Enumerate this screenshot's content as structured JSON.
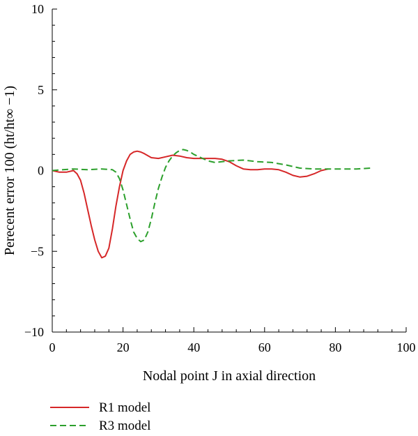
{
  "chart_data": {
    "type": "line",
    "title": "",
    "xlabel": "Nodal point J in axial direction",
    "ylabel": "Perecent error 100 (ht/ht∞ −1)",
    "xlim": [
      0,
      100
    ],
    "ylim": [
      -10,
      10
    ],
    "x_ticks": [
      0,
      20,
      40,
      60,
      80,
      100
    ],
    "x_tick_labels": [
      "0",
      "20",
      "40",
      "60",
      "80",
      "100"
    ],
    "y_ticks": [
      10,
      5,
      0,
      -5,
      -10
    ],
    "y_tick_labels": [
      "10",
      "5",
      "0",
      "−5",
      "−10"
    ],
    "grid": false,
    "legend_position": "bottom-left",
    "series": [
      {
        "name": "R1 model",
        "color": "#d62728",
        "style": "solid",
        "x": [
          0,
          2,
          4,
          6,
          7,
          8,
          9,
          10,
          11,
          12,
          13,
          14,
          15,
          16,
          17,
          18,
          19,
          20,
          21,
          22,
          23,
          24,
          25,
          26,
          28,
          30,
          32,
          34,
          36,
          38,
          40,
          42,
          44,
          46,
          48,
          50,
          52,
          54,
          56,
          58,
          60,
          62,
          64,
          66,
          68,
          70,
          72,
          74,
          76,
          78
        ],
        "values": [
          0,
          -0.1,
          -0.1,
          0,
          -0.2,
          -0.6,
          -1.4,
          -2.4,
          -3.4,
          -4.3,
          -5.0,
          -5.4,
          -5.3,
          -4.8,
          -3.6,
          -2.2,
          -1.0,
          0.0,
          0.6,
          1.0,
          1.15,
          1.2,
          1.15,
          1.05,
          0.8,
          0.75,
          0.85,
          0.95,
          0.9,
          0.8,
          0.75,
          0.75,
          0.75,
          0.75,
          0.7,
          0.55,
          0.3,
          0.1,
          0.05,
          0.05,
          0.1,
          0.1,
          0.05,
          -0.1,
          -0.3,
          -0.4,
          -0.35,
          -0.2,
          0.0,
          0.1
        ]
      },
      {
        "name": "R3 model",
        "color": "#2ca02c",
        "style": "dashed",
        "x": [
          0,
          3,
          6,
          10,
          14,
          17,
          18,
          19,
          20,
          21,
          22,
          23,
          24,
          25,
          26,
          27,
          28,
          29,
          30,
          31,
          32,
          33,
          34,
          35,
          36,
          37,
          38,
          39,
          40,
          42,
          44,
          46,
          48,
          50,
          54,
          58,
          62,
          66,
          70,
          74,
          78,
          82,
          86,
          90
        ],
        "values": [
          0,
          0.05,
          0.1,
          0.05,
          0.1,
          0.05,
          -0.1,
          -0.5,
          -1.2,
          -2.1,
          -3.0,
          -3.8,
          -4.2,
          -4.4,
          -4.3,
          -3.8,
          -3.0,
          -2.0,
          -1.1,
          -0.4,
          0.2,
          0.6,
          0.9,
          1.1,
          1.25,
          1.3,
          1.25,
          1.15,
          1.0,
          0.8,
          0.6,
          0.5,
          0.55,
          0.6,
          0.65,
          0.55,
          0.5,
          0.35,
          0.15,
          0.1,
          0.1,
          0.1,
          0.1,
          0.15
        ]
      }
    ]
  }
}
